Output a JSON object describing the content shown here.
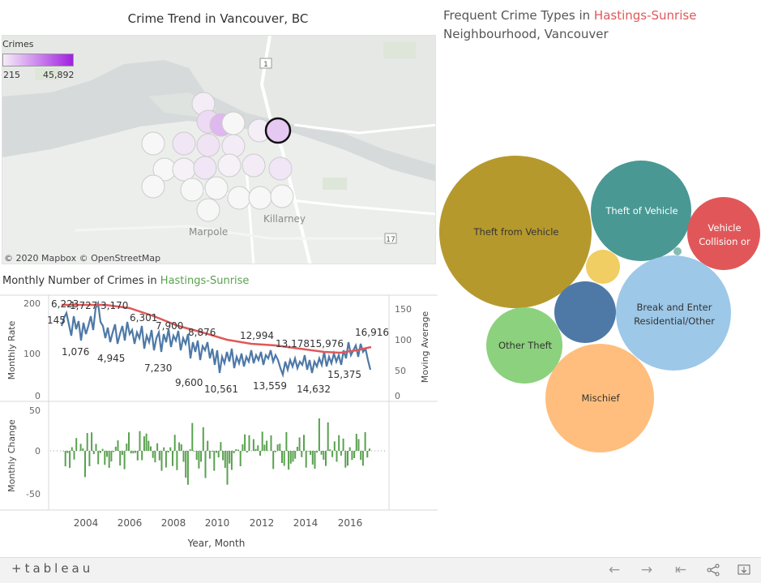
{
  "map": {
    "title": "Crime Trend in Vancouver, BC",
    "legend_title": "Crimes",
    "legend_min": "215",
    "legend_max": "45,892",
    "credit": "© 2020 Mapbox  © OpenStreetMap",
    "place_labels": [
      "Marpole",
      "Killarney"
    ],
    "highway_labels": [
      "1",
      "17"
    ],
    "scale_colors": {
      "low": "#f6ecf8",
      "high": "#a021e0"
    }
  },
  "line_panel": {
    "title_prefix": "Monthly Number of Crimes in ",
    "neighbourhood": "Hastings-Sunrise",
    "y_left_label": "Monthly Rate",
    "y_right_label": "Moving Average",
    "y_change_label": "Monthly Change",
    "x_label": "Year, Month",
    "x_ticks": [
      "2004",
      "2006",
      "2008",
      "2010",
      "2012",
      "2014",
      "2016"
    ],
    "left_ticks": [
      "200",
      "100",
      "0"
    ],
    "right_ticks": [
      "150",
      "100",
      "50",
      "0"
    ],
    "change_ticks": [
      "50",
      "0",
      "-50"
    ],
    "annotations": [
      "145",
      "6,223",
      "1,727",
      "3,170",
      "1,076",
      "6,301",
      "4,945",
      "7,900",
      "7,230",
      "8,876",
      "9,600",
      "10,561",
      "12,994",
      "13,559",
      "13,178",
      "15,976",
      "14,632",
      "15,375",
      "16,916"
    ],
    "colors": {
      "rate": "#4e79a7",
      "average": "#e15759",
      "change": "#59a14f"
    }
  },
  "bubble_panel": {
    "title_prefix": "Frequent Crime Types in ",
    "neighbourhood": "Hastings-Sunrise",
    "title_line2": "Neighbourhood, Vancouver",
    "bubbles": [
      {
        "label": "Theft from Vehicle",
        "color": "#b6992d"
      },
      {
        "label": "Theft of Vehicle",
        "color": "#499894"
      },
      {
        "label_lines": [
          "Vehicle",
          "Collision or"
        ],
        "color": "#e15759"
      },
      {
        "label": "",
        "color": "#f1ce63"
      },
      {
        "label": "",
        "color": "#4e79a7"
      },
      {
        "label_lines": [
          "Break and Enter",
          "Residential/Other"
        ],
        "color": "#9dc8e8"
      },
      {
        "label": "Other Theft",
        "color": "#8cd17d"
      },
      {
        "label": "Mischief",
        "color": "#ffbe7d"
      },
      {
        "label": "",
        "color": "#86bcb6"
      }
    ]
  },
  "toolbar": {
    "logo": "+tableau",
    "icons": [
      "undo-icon",
      "redo-icon",
      "revert-icon",
      "share-icon",
      "download-icon"
    ]
  }
}
